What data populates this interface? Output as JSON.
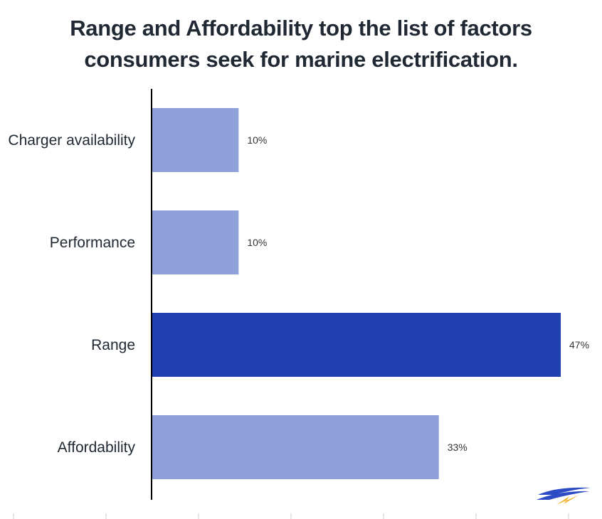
{
  "colors": {
    "highlight": "#2140b0",
    "default": "#8fa1d9",
    "axis": "#000000",
    "text": "#1f2833",
    "logo_blue": "#2b4cc4",
    "logo_yellow": "#f2b632"
  },
  "logo": {
    "icon": "boat-lightning-logo-icon"
  },
  "chart_data": {
    "type": "bar",
    "orientation": "horizontal",
    "title_lines": [
      "Range and Affordability top the list of factors",
      "consumers seek for marine electrification."
    ],
    "categories": [
      "Charger availability",
      "Performance",
      "Range",
      "Affordability"
    ],
    "values": [
      10,
      10,
      47,
      33
    ],
    "value_labels": [
      "10%",
      "10%",
      "47%",
      "33%"
    ],
    "highlighted": [
      "Range"
    ],
    "xlim": [
      0,
      47
    ],
    "xlabel": "",
    "ylabel": "",
    "grid": false,
    "legend": "none"
  }
}
